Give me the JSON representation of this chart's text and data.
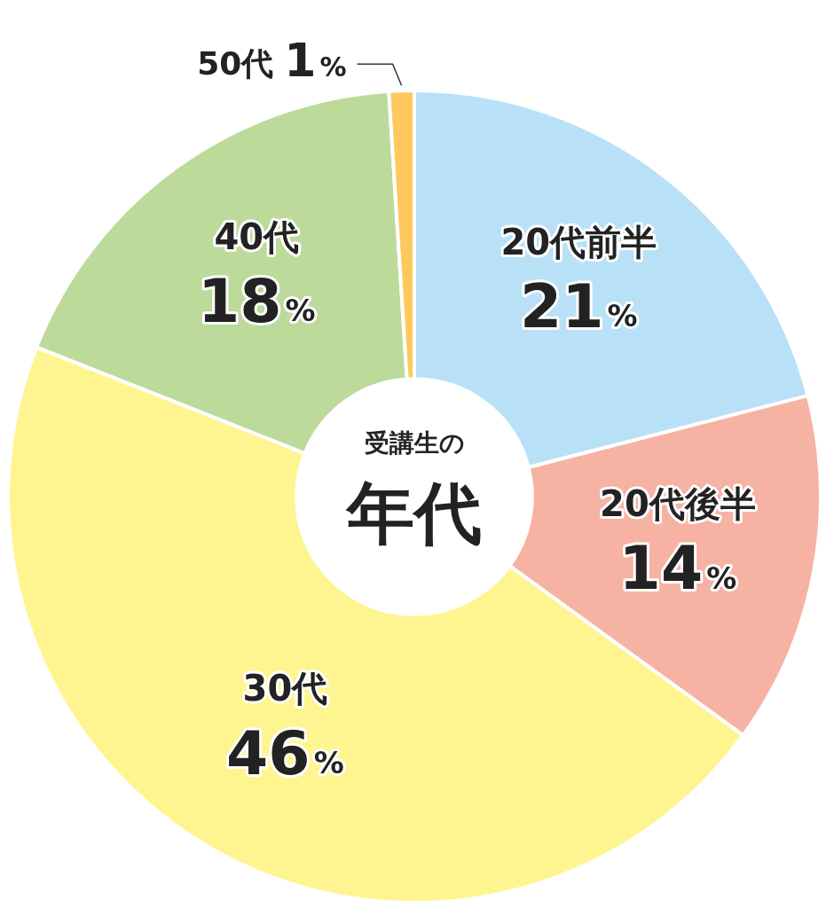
{
  "chart_data": {
    "type": "donut",
    "subtitle": "受講生の",
    "title": "年代",
    "categories": [
      "20代前半",
      "20代後半",
      "30代",
      "40代",
      "50代"
    ],
    "values": [
      21,
      14,
      46,
      18,
      1
    ],
    "value_labels": [
      "21%",
      "14%",
      "46%",
      "18%",
      "1%"
    ],
    "colors": [
      "#b8e1f7",
      "#f6b2a2",
      "#fff590",
      "#bcda99",
      "#fdc95e"
    ],
    "legend": false
  }
}
